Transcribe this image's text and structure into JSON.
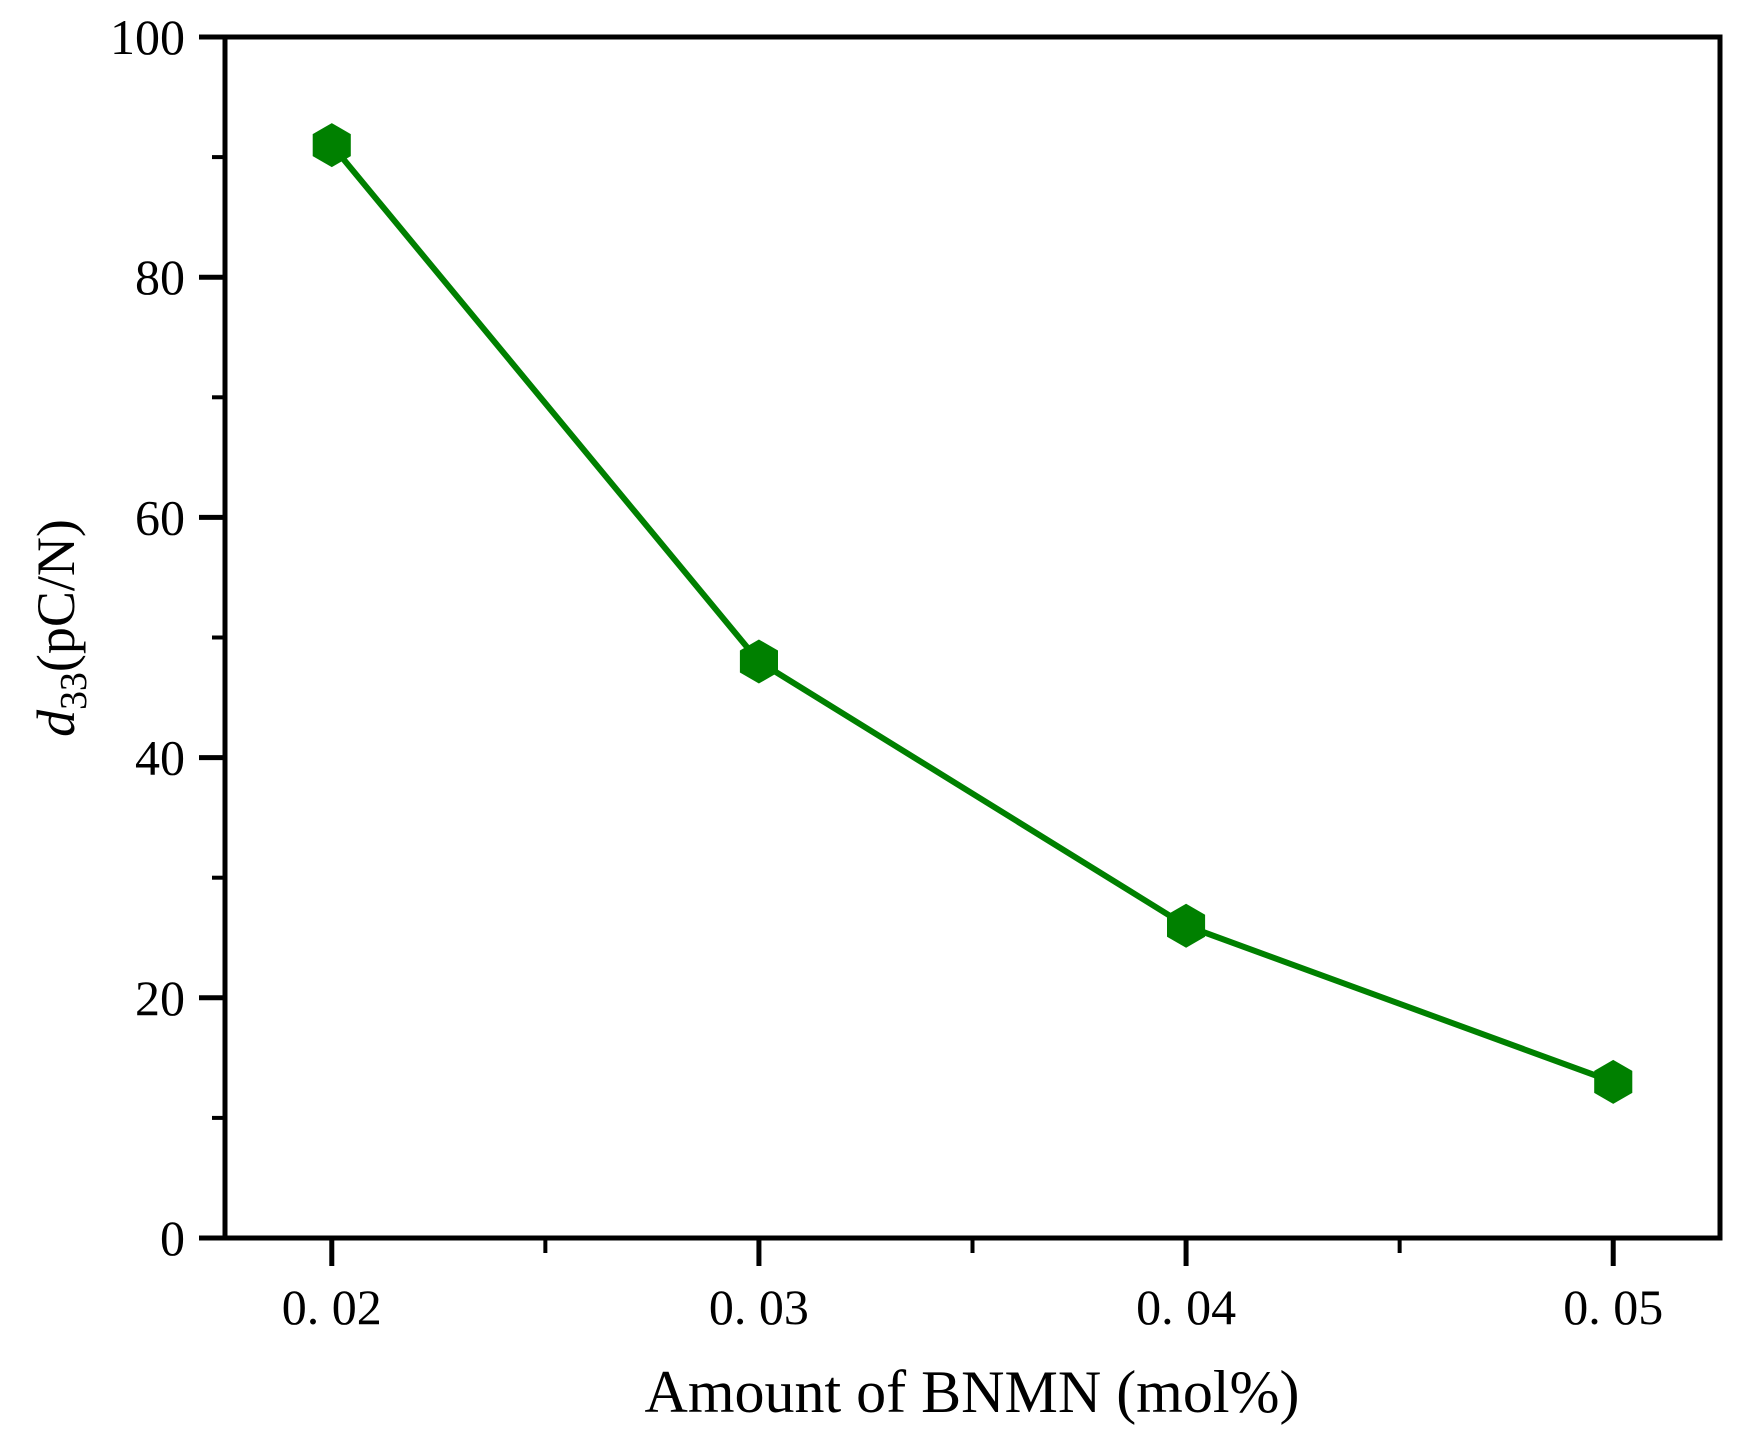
{
  "figure": {
    "background": "#ffffff",
    "text_color": "#000000"
  },
  "chart_data": {
    "type": "line",
    "title": "",
    "xlabel": "Amount of BNMN (mol%)",
    "ylabel": "d33(pC/N)",
    "ylabel_parts": {
      "variable": "d",
      "subscript": "33",
      "unit": "(pC/N)"
    },
    "x": [
      0.02,
      0.03,
      0.04,
      0.05
    ],
    "series": [
      {
        "name": "d33",
        "values": [
          91,
          48,
          26,
          13
        ],
        "color": "#008000",
        "marker": "hexagon"
      }
    ],
    "x_major_ticks": [
      0.02,
      0.03,
      0.04,
      0.05
    ],
    "x_tick_labels": [
      "0. 02",
      "0. 03",
      "0. 04",
      "0. 05"
    ],
    "x_minor_ticks": [
      0.025,
      0.035,
      0.045
    ],
    "y_major_ticks": [
      0,
      20,
      40,
      60,
      80,
      100
    ],
    "y_tick_labels": [
      "0",
      "20",
      "40",
      "60",
      "80",
      "100"
    ],
    "y_minor_ticks": [
      10,
      30,
      50,
      70,
      90
    ],
    "xlim": [
      0.0175,
      0.0525
    ],
    "ylim": [
      0,
      100
    ],
    "grid": false,
    "legend": false,
    "axis_color": "#000000"
  }
}
